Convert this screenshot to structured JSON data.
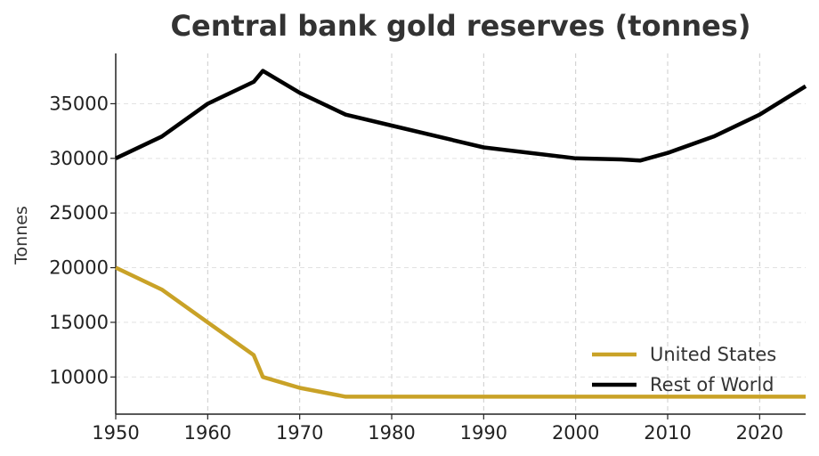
{
  "chart_data": {
    "type": "line",
    "title": "Central bank gold reserves (tonnes)",
    "xlabel": "",
    "ylabel": "Tonnes",
    "xlim": [
      1950,
      2025
    ],
    "ylim": [
      6600,
      39600
    ],
    "xticks": [
      1950,
      1960,
      1970,
      1980,
      1990,
      2000,
      2010,
      2020
    ],
    "yticks": [
      10000,
      15000,
      20000,
      25000,
      30000,
      35000
    ],
    "grid": true,
    "legend_position": "bottom-right",
    "series": [
      {
        "name": "United States",
        "color": "#C9A227",
        "x": [
          1950,
          1955,
          1960,
          1965,
          1966,
          1970,
          1975,
          1980,
          1990,
          2000,
          2010,
          2020,
          2025
        ],
        "y": [
          20000,
          18000,
          15000,
          12000,
          10000,
          9000,
          8200,
          8200,
          8200,
          8200,
          8200,
          8200,
          8200
        ]
      },
      {
        "name": "Rest of World",
        "color": "#000000",
        "x": [
          1950,
          1955,
          1960,
          1965,
          1966,
          1970,
          1975,
          1980,
          1990,
          2000,
          2005,
          2007,
          2010,
          2015,
          2020,
          2025
        ],
        "y": [
          30000,
          32000,
          35000,
          37000,
          38000,
          36000,
          34000,
          33000,
          31000,
          30000,
          29900,
          29800,
          30500,
          32000,
          34000,
          36600
        ]
      }
    ]
  }
}
